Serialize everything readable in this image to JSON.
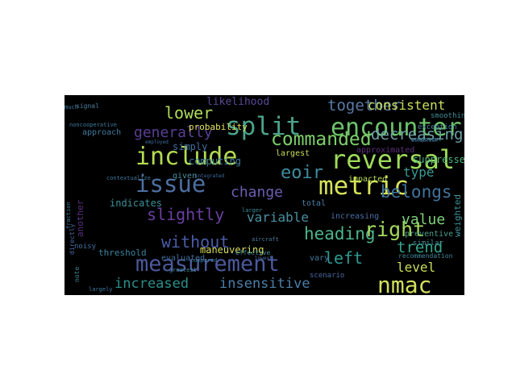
{
  "cloud": {
    "background": "#000000",
    "words": [
      {
        "text": "encounter",
        "color": "#6cc36a"
      },
      {
        "text": "reversal",
        "color": "#9edb5a"
      },
      {
        "text": "split",
        "color": "#4aa38a"
      },
      {
        "text": "metric",
        "color": "#d6e35a"
      },
      {
        "text": "include",
        "color": "#b3dc52"
      },
      {
        "text": "issue",
        "color": "#4d6fa0"
      },
      {
        "text": "measurement",
        "color": "#4b5a9c"
      },
      {
        "text": "nmac",
        "color": "#d2e05c"
      },
      {
        "text": "commanded",
        "color": "#7ccf6a"
      },
      {
        "text": "lower",
        "color": "#aedc5a"
      },
      {
        "text": "together",
        "color": "#5a7aa6"
      },
      {
        "text": "slightly",
        "color": "#6a3fa0"
      },
      {
        "text": "heading",
        "color": "#4cb58a"
      },
      {
        "text": "right",
        "color": "#a3d85e"
      },
      {
        "text": "generally",
        "color": "#5a3f94"
      },
      {
        "text": "decreasing",
        "color": "#6ea0a8"
      },
      {
        "text": "change",
        "color": "#6a5fb0"
      },
      {
        "text": "belongs",
        "color": "#41749c"
      },
      {
        "text": "eoir",
        "color": "#3f8ca0"
      },
      {
        "text": "without",
        "color": "#4a5ca8"
      },
      {
        "text": "left",
        "color": "#2f9a92"
      },
      {
        "text": "trend",
        "color": "#33a58c"
      },
      {
        "text": "value",
        "color": "#7fd07a"
      },
      {
        "text": "consistent",
        "color": "#c7e05a"
      },
      {
        "text": "increased",
        "color": "#2b8e8a"
      },
      {
        "text": "insensitive",
        "color": "#4b7fa8"
      },
      {
        "text": "variable",
        "color": "#4a8fa2"
      },
      {
        "text": "level",
        "color": "#c9df58"
      },
      {
        "text": "type",
        "color": "#3a9a92"
      },
      {
        "text": "likelihood",
        "color": "#5a4a96"
      },
      {
        "text": "probability",
        "color": "#e3e25a"
      },
      {
        "text": "computing",
        "color": "#3d7f9f"
      },
      {
        "text": "simply",
        "color": "#3f6ea0"
      },
      {
        "text": "indicates",
        "color": "#3a8f98"
      },
      {
        "text": "maneuvering",
        "color": "#d9df5c"
      },
      {
        "text": "approximated",
        "color": "#5e2f7a"
      },
      {
        "text": "suppressed",
        "color": "#4fb47e"
      },
      {
        "text": "largest",
        "color": "#c8df5a"
      },
      {
        "text": "impacted",
        "color": "#b8da56"
      },
      {
        "text": "total",
        "color": "#4c7fa6"
      },
      {
        "text": "given",
        "color": "#4a92a0"
      },
      {
        "text": "threshold",
        "color": "#39859e"
      },
      {
        "text": "evaluated",
        "color": "#3f6f9e"
      },
      {
        "text": "weighted",
        "color": "#3e8f96"
      },
      {
        "text": "another",
        "color": "#5a2f82"
      },
      {
        "text": "preventive",
        "color": "#4aa28a"
      },
      {
        "text": "increasing",
        "color": "#4a6ea2"
      },
      {
        "text": "vary",
        "color": "#3f7aa0"
      },
      {
        "text": "scenario",
        "color": "#4a6aa0"
      },
      {
        "text": "similar",
        "color": "#46919a"
      },
      {
        "text": "approach",
        "color": "#3f7a9e"
      },
      {
        "text": "recommendation",
        "color": "#3f8a9a"
      },
      {
        "text": "exception",
        "color": "#4a82a0"
      },
      {
        "text": "smoothing",
        "color": "#3f8c9a"
      },
      {
        "text": "signal",
        "color": "#4a7fa0"
      },
      {
        "text": "noisy",
        "color": "#3f6ea0"
      },
      {
        "text": "note",
        "color": "#3a8796"
      },
      {
        "text": "compared",
        "color": "#3f7aa0"
      },
      {
        "text": "greatest",
        "color": "#4a86a0"
      },
      {
        "text": "effective",
        "color": "#3f8a9a"
      },
      {
        "text": "lowest",
        "color": "#4a6aa0"
      },
      {
        "text": "noncooperative",
        "color": "#3f7a9e"
      },
      {
        "text": "integrated",
        "color": "#3f6ea0"
      },
      {
        "text": "component",
        "color": "#46919a"
      },
      {
        "text": "aircraft",
        "color": "#4a7fa0"
      },
      {
        "text": "larger",
        "color": "#3f8a9a"
      },
      {
        "text": "establish",
        "color": "#3f6e9e"
      },
      {
        "text": "contextualize",
        "color": "#3f7a9e"
      },
      {
        "text": "employed",
        "color": "#3f6ea0"
      },
      {
        "text": "much",
        "color": "#3f7aa0"
      },
      {
        "text": "directly",
        "color": "#4a6aa0"
      },
      {
        "text": "fraction",
        "color": "#3f7a9e"
      },
      {
        "text": "largely",
        "color": "#3f7aa0"
      }
    ]
  }
}
